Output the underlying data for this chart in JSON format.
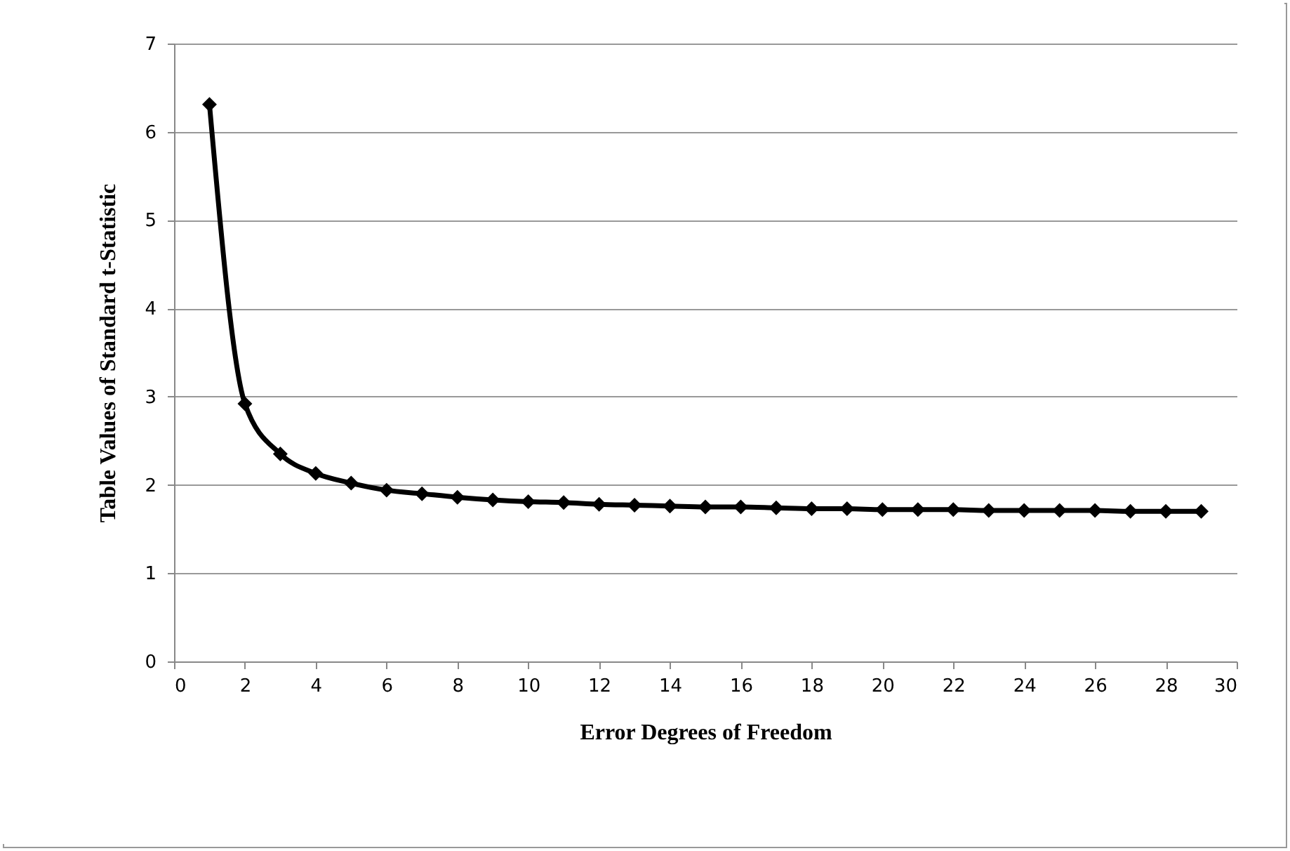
{
  "chart_data": {
    "type": "line",
    "xlabel": "Error Degrees of Freedom",
    "ylabel": "Table Values of Standard  t-Statistic",
    "x": [
      1,
      2,
      3,
      4,
      5,
      6,
      7,
      8,
      9,
      10,
      11,
      12,
      13,
      14,
      15,
      16,
      17,
      18,
      19,
      20,
      21,
      22,
      23,
      24,
      25,
      26,
      27,
      28,
      29
    ],
    "series": [
      {
        "color": "#000000",
        "values": [
          6.31,
          2.92,
          2.35,
          2.13,
          2.02,
          1.94,
          1.9,
          1.86,
          1.83,
          1.81,
          1.8,
          1.78,
          1.77,
          1.76,
          1.75,
          1.75,
          1.74,
          1.73,
          1.73,
          1.72,
          1.72,
          1.72,
          1.71,
          1.71,
          1.71,
          1.71,
          1.7,
          1.7,
          1.7
        ]
      }
    ],
    "xlim": [
      0,
      30
    ],
    "xticks": [
      0,
      2,
      4,
      6,
      8,
      10,
      12,
      14,
      16,
      18,
      20,
      22,
      24,
      26,
      28,
      30
    ],
    "ylim": [
      0,
      7
    ],
    "yticks": [
      0,
      1,
      2,
      3,
      4,
      5,
      6,
      7
    ],
    "grid": "y",
    "marker": "diamond",
    "line_style": "solid"
  }
}
